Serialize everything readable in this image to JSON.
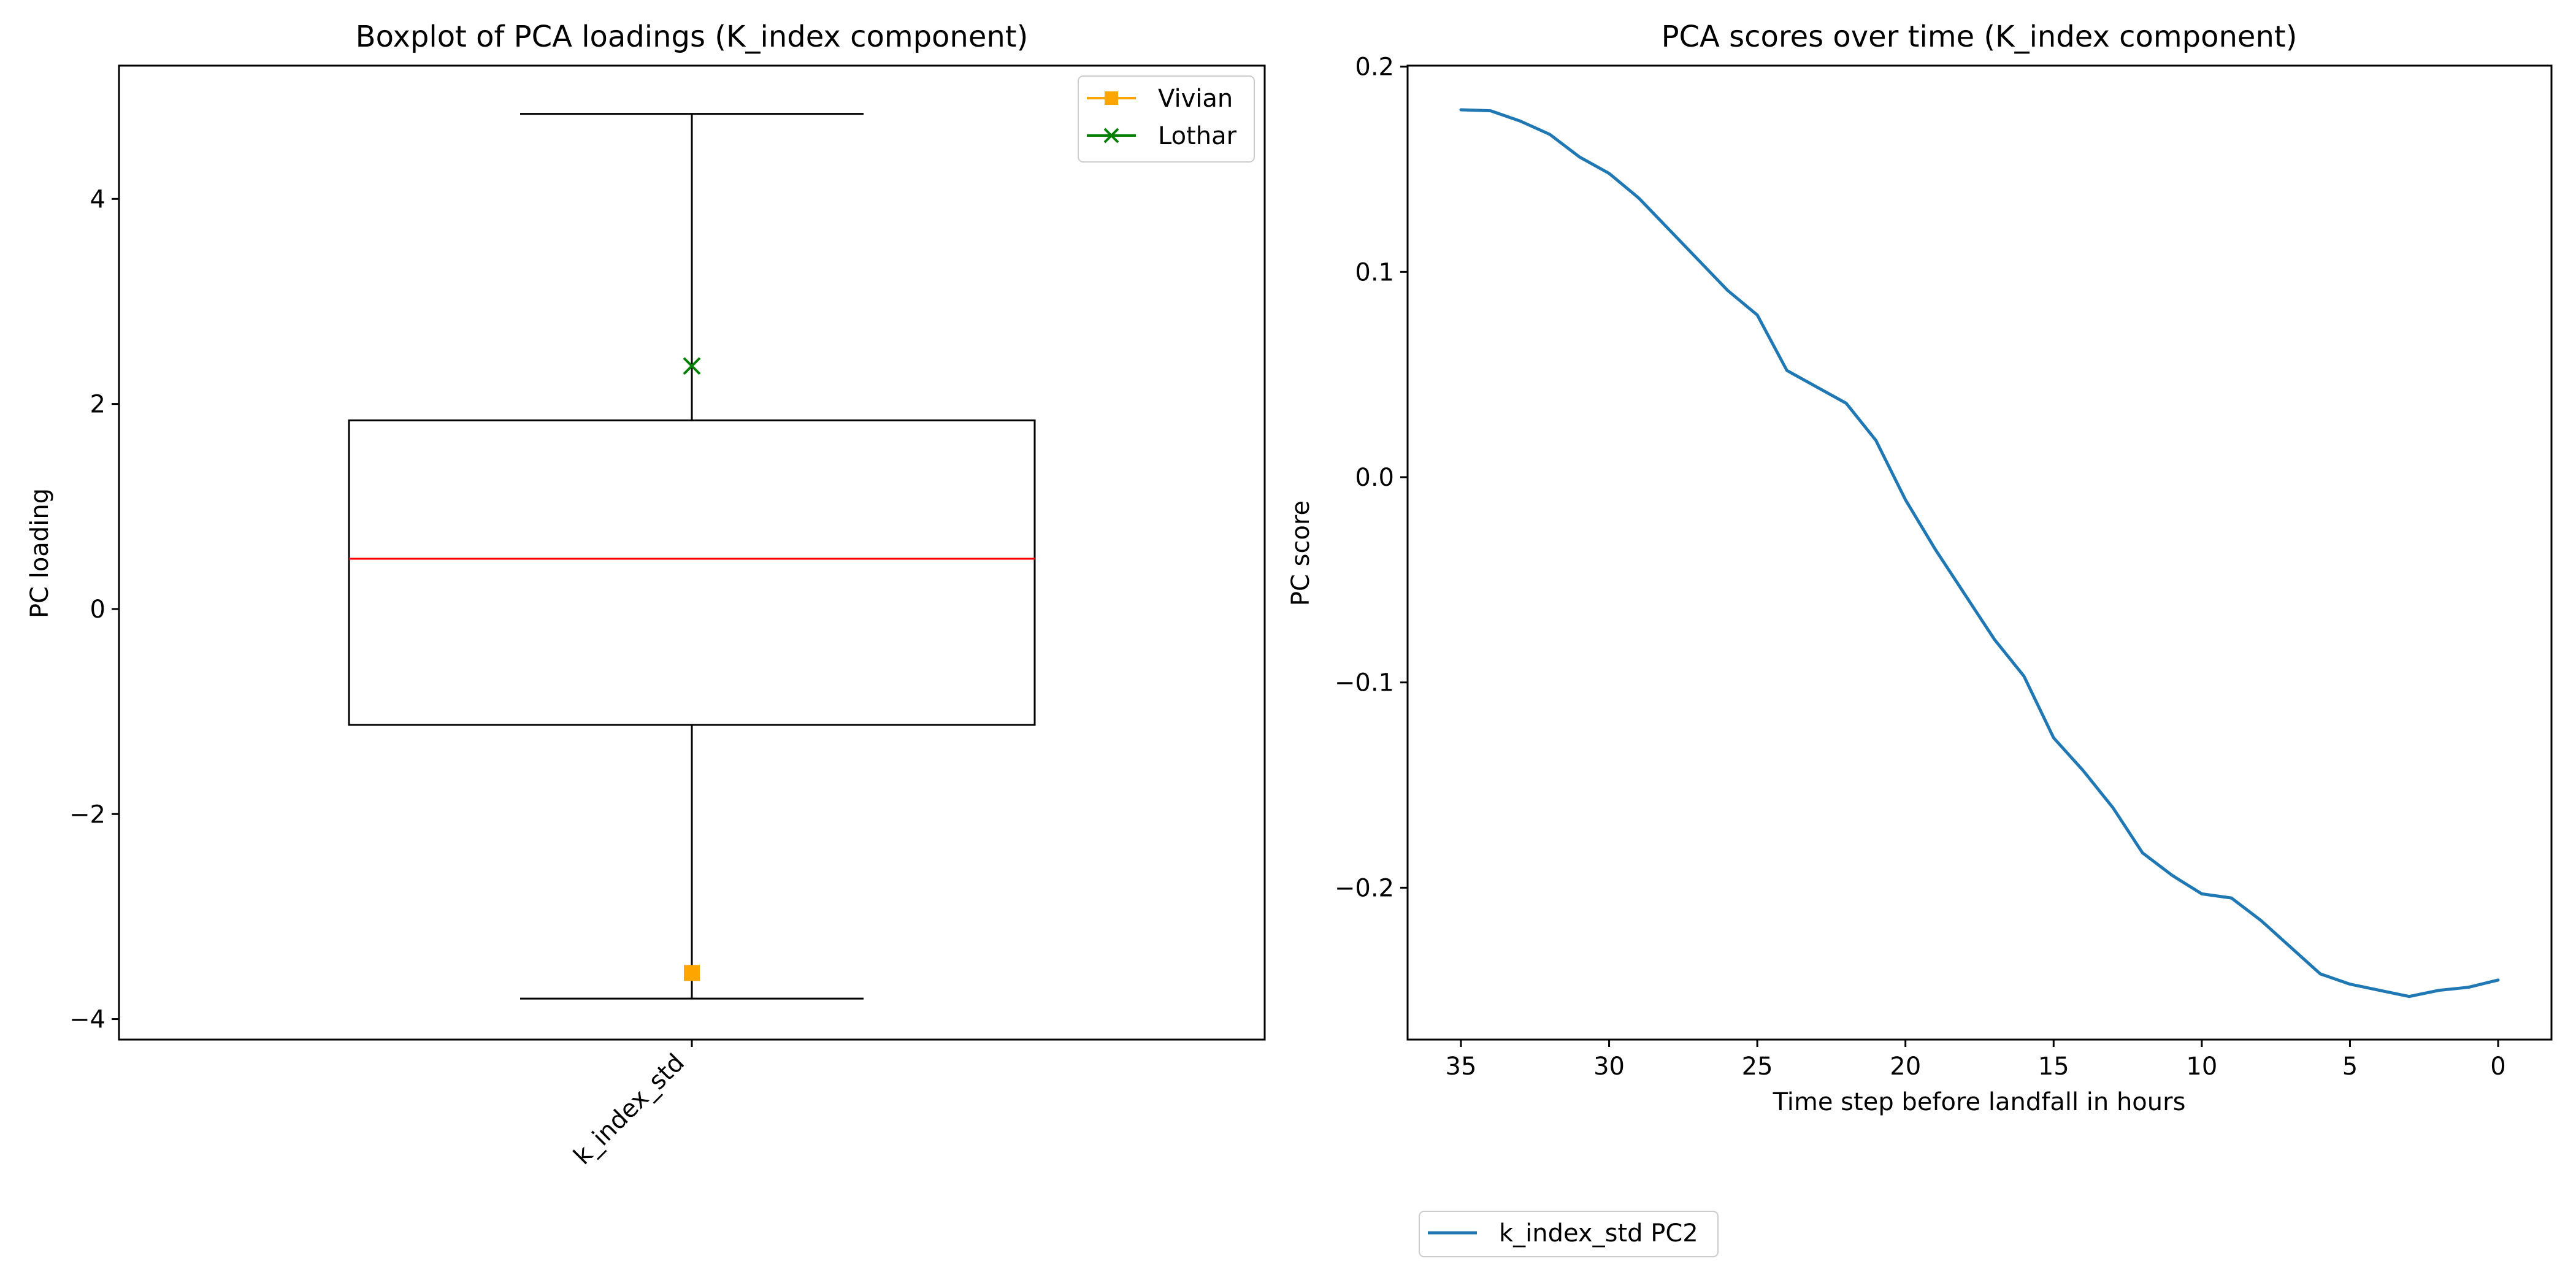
{
  "chart_data": [
    {
      "type": "box",
      "title": "Boxplot of PCA loadings (K_index component)",
      "xlabel": "",
      "ylabel": "PC loading",
      "ylim": [
        -4.2,
        5.3
      ],
      "yticks": [
        -4,
        -2,
        0,
        2,
        4
      ],
      "ytick_labels": [
        "−4",
        "−2",
        "0",
        "2",
        "4"
      ],
      "categories": [
        "k_index_std"
      ],
      "box": {
        "whisker_low": -3.8,
        "q1": -1.13,
        "median": 0.49,
        "q3": 1.84,
        "whisker_high": 4.83
      },
      "grid": false,
      "legend_position": "top-right",
      "markers": [
        {
          "name": "Vivian",
          "value": -3.55,
          "color": "#ffa500",
          "marker": "square"
        },
        {
          "name": "Lothar",
          "value": 2.37,
          "color": "#008000",
          "marker": "x"
        }
      ],
      "colors": {
        "median": "#ff0000",
        "box": "#000000"
      }
    },
    {
      "type": "line",
      "title": "PCA scores over time (K_index component)",
      "xlabel": "Time step before landfall in hours",
      "ylabel": "PC score",
      "xlim": [
        36.8,
        -1.8
      ],
      "ylim": [
        -0.274,
        0.2005
      ],
      "xticks": [
        35,
        30,
        25,
        20,
        15,
        10,
        5,
        0
      ],
      "xtick_labels": [
        "35",
        "30",
        "25",
        "20",
        "15",
        "10",
        "5",
        "0"
      ],
      "yticks": [
        -0.2,
        -0.1,
        0.0,
        0.1,
        0.2
      ],
      "ytick_labels": [
        "−0.2",
        "−0.1",
        "0.0",
        "0.1",
        "0.2"
      ],
      "grid": false,
      "legend_position": "below",
      "series": [
        {
          "name": "k_index_std PC2",
          "color": "#1f77b4",
          "x": [
            35,
            34,
            33,
            32,
            31,
            30,
            29,
            28,
            27,
            26,
            25,
            24,
            23,
            22,
            21,
            20,
            19,
            18,
            17,
            16,
            15,
            14,
            13,
            12,
            11,
            10,
            9,
            8,
            7,
            6,
            5,
            4,
            3,
            2,
            1,
            0
          ],
          "y": [
            0.179,
            0.1785,
            0.1735,
            0.167,
            0.156,
            0.148,
            0.136,
            0.121,
            0.106,
            0.091,
            0.079,
            0.052,
            0.044,
            0.036,
            0.018,
            -0.011,
            -0.035,
            -0.057,
            -0.079,
            -0.097,
            -0.127,
            -0.143,
            -0.161,
            -0.183,
            -0.194,
            -0.203,
            -0.205,
            -0.216,
            -0.229,
            -0.242,
            -0.247,
            -0.25,
            -0.253,
            -0.25,
            -0.2485,
            -0.245
          ]
        }
      ]
    }
  ]
}
